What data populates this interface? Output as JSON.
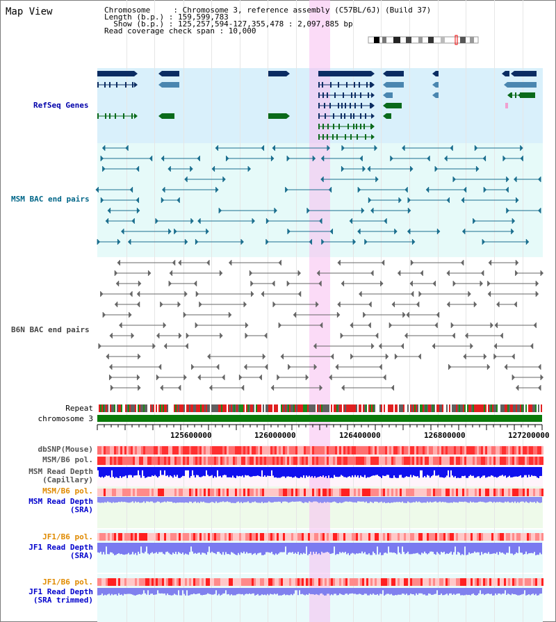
{
  "title": "Map View",
  "info": {
    "line1": "Chromosome     : Chromosome 3, reference assembly (C57BL/6J) (Build 37)",
    "line2": "Length (b.p.) : 159,599,783",
    "line3": "  Show (b.p.) : 125,257,594-127,355,478 : 2,097,885 bp",
    "line4": "Read coverage check span : 10,000"
  },
  "tracks": {
    "refseq": "RefSeq Genes",
    "msm_bac": "MSM BAC end pairs",
    "b6n_bac": "B6N BAC end pairs",
    "repeat": "Repeat",
    "chromosome": "chromosome 3",
    "dbsnp": "dbSNP(Mouse)",
    "msm_b6_pol": "MSM/B6 pol.",
    "msm_depth_cap_1": "MSM Read Depth",
    "msm_depth_cap_2": "(Capillary)",
    "msm_b6_pol_sra": "MSM/B6 pol.",
    "msm_depth_sra_1": "MSM Read Depth",
    "msm_depth_sra_2": "(SRA)",
    "jf1_b6_pol": "JF1/B6 pol.",
    "jf1_depth_sra_1": "JF1 Read Depth",
    "jf1_depth_sra_2": "(SRA)",
    "jf1_b6_pol_trim": "JF1/B6 pol.",
    "jf1_depth_trim_1": "JF1 Read Depth",
    "jf1_depth_trim_2": "(SRA trimmed)"
  },
  "axis": {
    "ticks": [
      "125600000",
      "126000000",
      "126400000",
      "126800000",
      "127200000"
    ]
  },
  "colors": {
    "refseq_label": "#0000aa",
    "msm_label": "#006688",
    "b6n_label": "#444444",
    "orange_label": "#e08a00",
    "blue_label": "#0000cc",
    "gray_label": "#555555"
  }
}
